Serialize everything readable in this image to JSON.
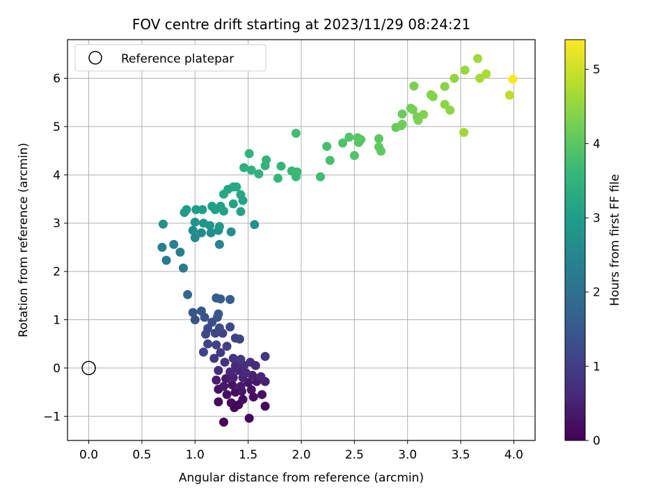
{
  "chart_data": {
    "type": "scatter",
    "title": "FOV centre drift starting at 2023/11/29 08:24:21",
    "xlabel": "Angular distance from reference (arcmin)",
    "ylabel": "Rotation from reference (arcmin)",
    "xlim": [
      -0.2,
      4.2
    ],
    "ylim": [
      -1.5,
      6.8
    ],
    "xticks": [
      0.0,
      0.5,
      1.0,
      1.5,
      2.0,
      2.5,
      3.0,
      3.5,
      4.0
    ],
    "xtick_labels": [
      "0.0",
      "0.5",
      "1.0",
      "1.5",
      "2.0",
      "2.5",
      "3.0",
      "3.5",
      "4.0"
    ],
    "yticks": [
      -1,
      0,
      1,
      2,
      3,
      4,
      5,
      6
    ],
    "ytick_labels": [
      "−1",
      "0",
      "1",
      "2",
      "3",
      "4",
      "5",
      "6"
    ],
    "grid": true,
    "legend": {
      "placement": "top-left",
      "entries": [
        "Reference platepar"
      ]
    },
    "reference_point": {
      "name": "Reference platepar",
      "x": 0.0,
      "y": 0.0
    },
    "colorbar": {
      "label": "Hours from first FF file",
      "range": [
        0,
        5.4
      ],
      "ticks": [
        0,
        1,
        2,
        3,
        4,
        5
      ],
      "tick_labels": [
        "0",
        "1",
        "2",
        "3",
        "4",
        "5"
      ],
      "colormap": [
        "#440154",
        "#482878",
        "#3e4989",
        "#31688e",
        "#26828e",
        "#1f9e89",
        "#35b779",
        "#6ece58",
        "#b5de2b",
        "#fde725"
      ]
    },
    "points": [
      [
        1.27,
        -1.12,
        0.05
      ],
      [
        1.51,
        -1.04,
        0.08
      ],
      [
        1.37,
        -0.82,
        0.05
      ],
      [
        1.66,
        -0.79,
        0.12
      ],
      [
        1.41,
        -0.76,
        0.1
      ],
      [
        1.22,
        -0.7,
        0.15
      ],
      [
        1.34,
        -0.72,
        0.1
      ],
      [
        1.45,
        -0.65,
        0.18
      ],
      [
        1.55,
        -0.6,
        0.2
      ],
      [
        1.63,
        -0.55,
        0.25
      ],
      [
        1.3,
        -0.55,
        0.22
      ],
      [
        1.38,
        -0.5,
        0.2
      ],
      [
        1.44,
        -0.48,
        0.3
      ],
      [
        1.53,
        -0.45,
        0.28
      ],
      [
        1.22,
        -0.44,
        0.25
      ],
      [
        1.27,
        -0.38,
        0.35
      ],
      [
        1.35,
        -0.35,
        0.3
      ],
      [
        1.43,
        -0.38,
        0.4
      ],
      [
        1.5,
        -0.3,
        0.35
      ],
      [
        1.58,
        -0.28,
        0.4
      ],
      [
        1.66,
        -0.28,
        0.45
      ],
      [
        1.2,
        -0.25,
        0.45
      ],
      [
        1.29,
        -0.22,
        0.4
      ],
      [
        1.36,
        -0.2,
        0.5
      ],
      [
        1.45,
        -0.2,
        0.55
      ],
      [
        1.54,
        -0.15,
        0.5
      ],
      [
        1.62,
        -0.18,
        0.55
      ],
      [
        1.33,
        -0.08,
        0.6
      ],
      [
        1.41,
        -0.05,
        0.55
      ],
      [
        1.48,
        -0.1,
        0.65
      ],
      [
        1.22,
        -0.05,
        0.7
      ],
      [
        1.38,
        0.05,
        0.65
      ],
      [
        1.46,
        0.05,
        0.7
      ],
      [
        1.52,
        0.12,
        0.75
      ],
      [
        1.57,
        0.05,
        0.7
      ],
      [
        1.28,
        0.12,
        0.8
      ],
      [
        1.18,
        0.2,
        0.85
      ],
      [
        1.36,
        0.2,
        0.8
      ],
      [
        1.43,
        0.18,
        0.9
      ],
      [
        1.66,
        0.24,
        0.9
      ],
      [
        1.08,
        0.33,
        1.05
      ],
      [
        1.24,
        0.32,
        0.95
      ],
      [
        1.3,
        0.45,
        1.0
      ],
      [
        1.2,
        0.48,
        1.1
      ],
      [
        1.12,
        0.5,
        1.1
      ],
      [
        1.38,
        0.62,
        1.05
      ],
      [
        1.42,
        0.6,
        1.1
      ],
      [
        1.1,
        0.7,
        1.2
      ],
      [
        1.19,
        0.72,
        1.15
      ],
      [
        1.26,
        0.72,
        1.1
      ],
      [
        1.12,
        0.82,
        1.2
      ],
      [
        1.23,
        0.83,
        1.25
      ],
      [
        1.33,
        0.85,
        1.2
      ],
      [
        1.16,
        0.95,
        1.3
      ],
      [
        1.0,
        1.0,
        1.35
      ],
      [
        1.09,
        1.05,
        1.4
      ],
      [
        1.21,
        1.05,
        1.4
      ],
      [
        0.98,
        1.15,
        1.45
      ],
      [
        1.06,
        1.18,
        1.45
      ],
      [
        1.22,
        1.12,
        1.5
      ],
      [
        1.2,
        1.45,
        1.55
      ],
      [
        1.24,
        1.43,
        1.6
      ],
      [
        1.33,
        1.42,
        1.65
      ],
      [
        0.93,
        1.52,
        1.8
      ],
      [
        0.89,
        2.07,
        2.2
      ],
      [
        0.73,
        2.23,
        2.25
      ],
      [
        0.69,
        2.5,
        2.3
      ],
      [
        0.8,
        2.56,
        2.4
      ],
      [
        0.86,
        2.4,
        2.35
      ],
      [
        1.23,
        2.56,
        2.5
      ],
      [
        1.0,
        2.7,
        2.55
      ],
      [
        1.06,
        2.8,
        2.6
      ],
      [
        0.98,
        2.85,
        2.6
      ],
      [
        1.15,
        2.8,
        2.65
      ],
      [
        1.22,
        2.85,
        2.7
      ],
      [
        1.34,
        2.82,
        2.7
      ],
      [
        1.56,
        2.97,
        2.7
      ],
      [
        0.7,
        2.98,
        2.75
      ],
      [
        1.0,
        3.02,
        2.8
      ],
      [
        1.08,
        3.0,
        2.85
      ],
      [
        1.14,
        2.95,
        2.85
      ],
      [
        1.23,
        2.93,
        2.9
      ],
      [
        0.9,
        3.22,
        2.9
      ],
      [
        0.92,
        3.28,
        2.95
      ],
      [
        1.01,
        3.28,
        3.0
      ],
      [
        1.07,
        3.28,
        3.0
      ],
      [
        1.16,
        3.35,
        3.05
      ],
      [
        1.19,
        3.28,
        3.05
      ],
      [
        1.24,
        3.35,
        3.05
      ],
      [
        1.27,
        3.25,
        3.1
      ],
      [
        1.36,
        3.4,
        3.1
      ],
      [
        1.43,
        3.24,
        3.15
      ],
      [
        1.45,
        3.47,
        3.15
      ],
      [
        1.31,
        3.7,
        3.2
      ],
      [
        1.36,
        3.75,
        3.2
      ],
      [
        1.39,
        3.75,
        3.25
      ],
      [
        1.43,
        3.59,
        3.25
      ],
      [
        1.27,
        3.6,
        3.25
      ],
      [
        1.46,
        4.15,
        3.4
      ],
      [
        1.51,
        4.44,
        3.5
      ],
      [
        1.53,
        4.1,
        3.45
      ],
      [
        1.6,
        4.02,
        3.45
      ],
      [
        1.66,
        4.19,
        3.5
      ],
      [
        1.67,
        4.31,
        3.55
      ],
      [
        1.78,
        3.93,
        3.55
      ],
      [
        1.81,
        4.18,
        3.55
      ],
      [
        1.91,
        4.08,
        3.6
      ],
      [
        1.96,
        4.06,
        3.65
      ],
      [
        1.95,
        3.96,
        3.65
      ],
      [
        1.95,
        4.86,
        3.75
      ],
      [
        2.18,
        3.96,
        3.7
      ],
      [
        2.24,
        4.59,
        3.8
      ],
      [
        2.27,
        4.3,
        3.8
      ],
      [
        2.39,
        4.66,
        3.85
      ],
      [
        2.45,
        4.78,
        3.9
      ],
      [
        2.5,
        4.4,
        3.9
      ],
      [
        2.54,
        4.71,
        3.95
      ],
      [
        2.54,
        4.67,
        3.95
      ],
      [
        2.56,
        4.73,
        3.95
      ],
      [
        2.53,
        4.77,
        4.0
      ],
      [
        2.73,
        4.75,
        4.0
      ],
      [
        2.73,
        4.58,
        4.05
      ],
      [
        2.75,
        4.49,
        4.05
      ],
      [
        2.89,
        4.98,
        4.1
      ],
      [
        2.94,
        5.02,
        4.15
      ],
      [
        2.95,
        5.26,
        4.15
      ],
      [
        2.95,
        5.05,
        4.2
      ],
      [
        3.03,
        5.38,
        4.2
      ],
      [
        3.05,
        5.35,
        4.25
      ],
      [
        3.06,
        5.84,
        4.3
      ],
      [
        3.09,
        5.2,
        4.25
      ],
      [
        3.1,
        5.13,
        4.3
      ],
      [
        3.15,
        5.25,
        4.35
      ],
      [
        3.22,
        5.66,
        4.35
      ],
      [
        3.24,
        5.62,
        4.4
      ],
      [
        3.35,
        5.83,
        4.4
      ],
      [
        3.35,
        5.46,
        4.45
      ],
      [
        3.4,
        5.34,
        4.45
      ],
      [
        3.44,
        6.0,
        4.5
      ],
      [
        3.53,
        4.88,
        4.6
      ],
      [
        3.54,
        6.17,
        4.55
      ],
      [
        3.66,
        6.41,
        4.6
      ],
      [
        3.68,
        6.0,
        4.65
      ],
      [
        3.74,
        6.09,
        4.7
      ],
      [
        3.96,
        5.65,
        4.85
      ],
      [
        3.99,
        5.98,
        5.4
      ]
    ]
  }
}
